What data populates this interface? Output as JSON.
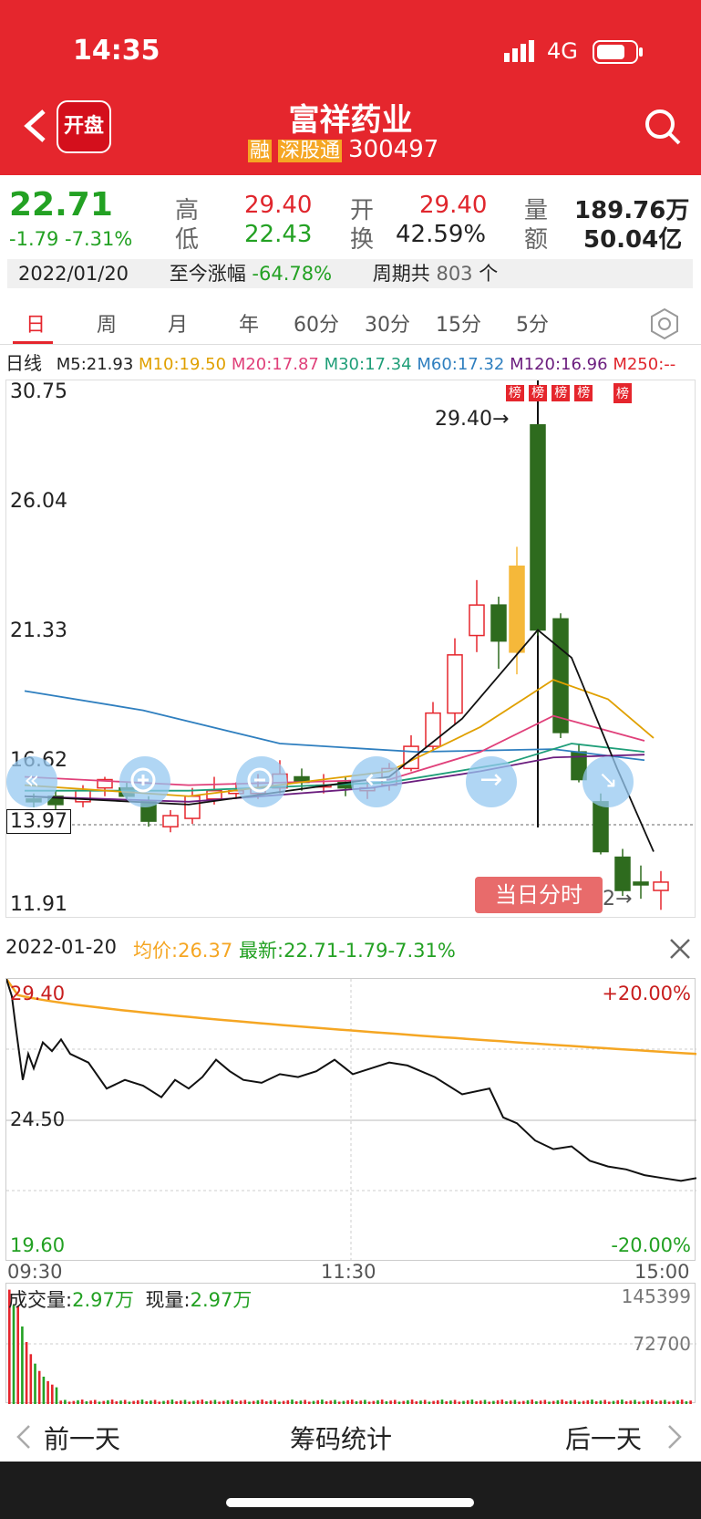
{
  "status_bar": {
    "time": "14:35",
    "network": "4G"
  },
  "header": {
    "logo_text": "开盘",
    "title": "富祥药业",
    "badge_margin": "融",
    "badge_connect": "深股通",
    "code": "300497"
  },
  "quote": {
    "price": "22.71",
    "change": "-1.79",
    "change_pct": "-7.31%",
    "high_label": "高",
    "high": "29.40",
    "low_label": "低",
    "low": "22.43",
    "open_label": "开",
    "open": "29.40",
    "turnover_label": "换",
    "turnover": "42.59%",
    "volume_label": "量",
    "volume": "189.76万",
    "amount_label": "额",
    "amount": "50.04亿"
  },
  "period_bar": {
    "date": "2022/01/20",
    "gain_label": "至今涨幅",
    "gain": "-64.78%",
    "cycle_label": "周期共",
    "cycle_count": "803",
    "cycle_unit": "个"
  },
  "tabs": [
    "日",
    "周",
    "月",
    "年",
    "60分",
    "30分",
    "15分",
    "5分"
  ],
  "ma": {
    "label": "日线",
    "m5": "M5:21.93",
    "m10": "M10:19.50",
    "m20": "M20:17.87",
    "m30": "M30:17.34",
    "m60": "M60:17.32",
    "m120": "M120:16.96",
    "m250": "M250:--"
  },
  "kchart": {
    "y_max": "30.75",
    "y_26": "26.04",
    "y_21": "21.33",
    "y_16": "16.62",
    "y_cross": "13.97",
    "y_min": "11.91",
    "high_note": "29.40",
    "low_note": "52",
    "bang": "榜",
    "intraday_btn": "当日分时"
  },
  "intraday": {
    "date": "2022-01-20",
    "avg_label": "均价:",
    "avg": "26.37",
    "latest_label": "最新:",
    "latest": "22.71-1.79-7.31%",
    "y_top": "29.40",
    "y_mid": "24.50",
    "y_bot": "19.60",
    "pct_top": "+20.00%",
    "pct_bot": "-20.00%",
    "t_start": "09:30",
    "t_mid": "11:30",
    "t_end": "15:00"
  },
  "volume": {
    "label": "成交量:",
    "value": "2.97万",
    "now_label": "现量:",
    "now_value": "2.97万",
    "max": "145399",
    "mid": "72700"
  },
  "bottom_nav": {
    "prev": "前一天",
    "center": "筹码统计",
    "next": "后一天"
  },
  "colors": {
    "red": "#e5262d",
    "green": "#23a123",
    "orange": "#f5a623"
  },
  "chart_data": [
    {
      "type": "candlestick",
      "ylim": [
        11.91,
        30.75
      ],
      "notes": "daily k-line with moving averages"
    },
    {
      "type": "line",
      "title": "",
      "ylim": [
        19.6,
        29.4
      ],
      "series": [
        {
          "name": "均价",
          "color": "#f5a623"
        },
        {
          "name": "最新",
          "color": "#000"
        }
      ]
    }
  ]
}
